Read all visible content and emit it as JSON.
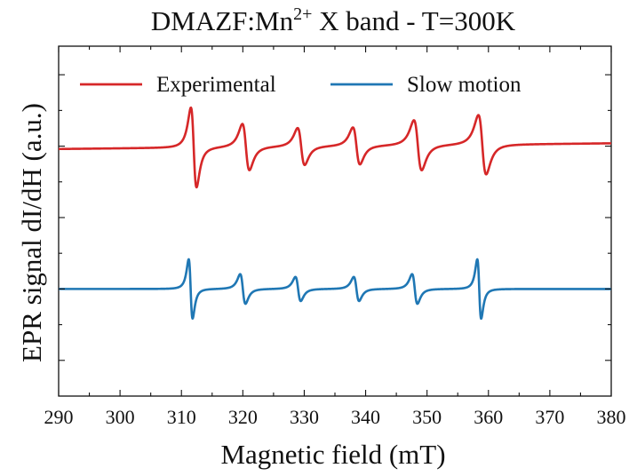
{
  "chart_data": {
    "type": "line",
    "title": {
      "prefix": "DMAZF:Mn",
      "superscript": "2+",
      "suffix": " X band - T=300K"
    },
    "xlabel": "Magnetic field (mT)",
    "ylabel": "EPR signal dI/dH (a.u.)",
    "xlim": [
      290,
      380
    ],
    "ylim": [
      -1.25,
      1.2
    ],
    "y_ticks_labeled": false,
    "x_ticks": [
      290,
      300,
      310,
      320,
      330,
      340,
      350,
      360,
      370,
      380
    ],
    "legend": {
      "position": "top"
    },
    "series": [
      {
        "name": "Experimental",
        "color": "#d62728",
        "offset": 0.5,
        "baseline_left": -0.02,
        "baseline_right": 0.02,
        "lines": [
          {
            "center": 312.0,
            "half_width": 0.8,
            "amp": 0.43
          },
          {
            "center": 320.5,
            "half_width": 1.0,
            "amp": 0.25
          },
          {
            "center": 329.5,
            "half_width": 1.0,
            "amp": 0.2
          },
          {
            "center": 338.5,
            "half_width": 1.0,
            "amp": 0.2
          },
          {
            "center": 348.5,
            "half_width": 1.1,
            "amp": 0.27
          },
          {
            "center": 359.0,
            "half_width": 1.1,
            "amp": 0.32
          }
        ]
      },
      {
        "name": "Slow motion",
        "color": "#1f77b4",
        "offset": -0.5,
        "baseline_left": 0.0,
        "baseline_right": 0.0,
        "lines": [
          {
            "center": 311.5,
            "half_width": 0.55,
            "amp": 0.32
          },
          {
            "center": 320.0,
            "half_width": 0.75,
            "amp": 0.16
          },
          {
            "center": 329.0,
            "half_width": 0.75,
            "amp": 0.13
          },
          {
            "center": 338.5,
            "half_width": 0.75,
            "amp": 0.13
          },
          {
            "center": 348.0,
            "half_width": 0.75,
            "amp": 0.16
          },
          {
            "center": 358.5,
            "half_width": 0.55,
            "amp": 0.32
          }
        ]
      }
    ]
  }
}
